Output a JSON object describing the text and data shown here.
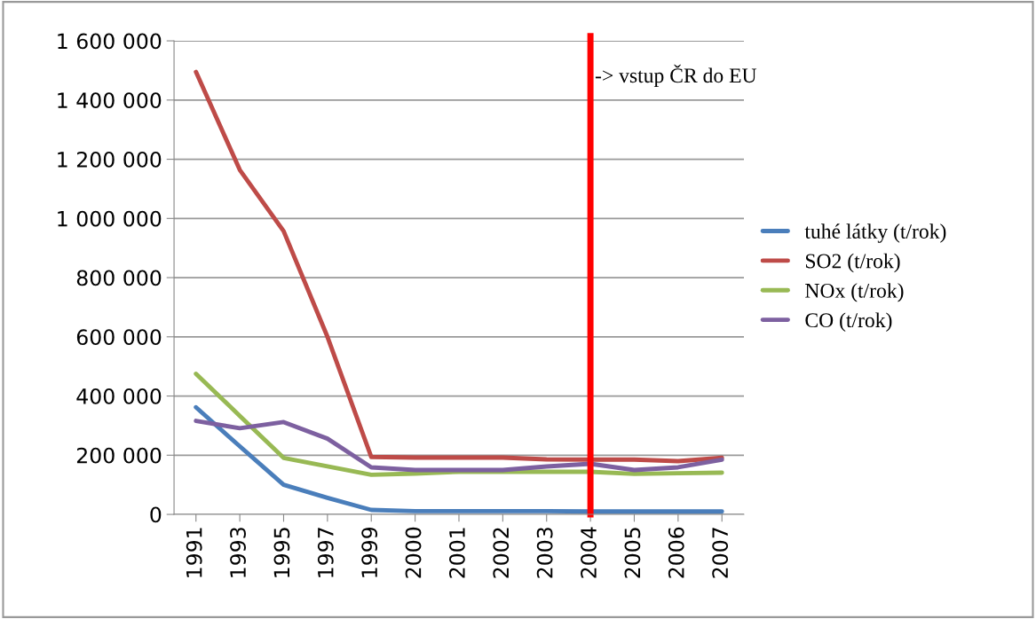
{
  "chart_data": {
    "type": "line",
    "categories": [
      "1991",
      "1993",
      "1995",
      "1997",
      "1999",
      "2000",
      "2001",
      "2002",
      "2003",
      "2004",
      "2005",
      "2006",
      "2007"
    ],
    "series": [
      {
        "name": "tuhé látky (t/rok)",
        "color": "#4a7ebb",
        "values": [
          362000,
          230000,
          100000,
          56000,
          15000,
          11000,
          11000,
          11000,
          11000,
          10000,
          10000,
          10000,
          10000
        ]
      },
      {
        "name": "SO2 (t/rok)",
        "color": "#be4b48",
        "values": [
          1495000,
          1164000,
          957000,
          600000,
          194000,
          192000,
          192000,
          192000,
          186000,
          185000,
          185000,
          180000,
          191000
        ]
      },
      {
        "name": "NOx (t/rok)",
        "color": "#98b954",
        "values": [
          475000,
          333000,
          191000,
          162000,
          134000,
          138000,
          144000,
          144000,
          144000,
          144000,
          137000,
          139000,
          141000
        ]
      },
      {
        "name": "CO (t/rok)",
        "color": "#7d60a0",
        "values": [
          316000,
          291000,
          312000,
          256000,
          159000,
          150000,
          150000,
          150000,
          162000,
          171000,
          150000,
          159000,
          185000
        ]
      }
    ],
    "ylim": [
      0,
      1600000
    ],
    "yticks": [
      {
        "value": 0,
        "label": "0"
      },
      {
        "value": 200000,
        "label": "200 000"
      },
      {
        "value": 400000,
        "label": "400 000"
      },
      {
        "value": 600000,
        "label": "600 000"
      },
      {
        "value": 800000,
        "label": "800 000"
      },
      {
        "value": 1000000,
        "label": "1 000 000"
      },
      {
        "value": 1200000,
        "label": "1 200 000"
      },
      {
        "value": 1400000,
        "label": "1 400 000"
      },
      {
        "value": 1600000,
        "label": "1 600 000"
      }
    ],
    "grid": "y",
    "legend": "right",
    "ref_lines": [
      {
        "axis": "x",
        "value": "2004",
        "label": "-> vstup ČR do EU",
        "color": "#ff0000"
      }
    ]
  }
}
